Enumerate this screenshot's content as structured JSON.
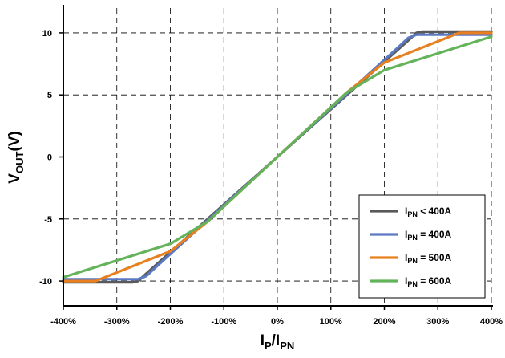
{
  "chart_data": {
    "type": "line",
    "title": "",
    "xlabel": {
      "main": "I",
      "sub1": "P",
      "sep": "/I",
      "sub2": "PN"
    },
    "ylabel": {
      "main": "V",
      "sub": "OUT",
      "unit": "(V)"
    },
    "xlim": [
      -400,
      400
    ],
    "ylim": [
      -12,
      12
    ],
    "x_ticks": [
      -400,
      -300,
      -200,
      -100,
      0,
      100,
      200,
      300,
      400
    ],
    "x_tick_labels": [
      "-400%",
      "-300%",
      "-200%",
      "-100%",
      "0%",
      "100%",
      "200%",
      "300%",
      "400%"
    ],
    "y_ticks": [
      -10,
      -5,
      0,
      5,
      10
    ],
    "y_tick_labels": [
      "-10",
      "-5",
      "0",
      "5",
      "10"
    ],
    "grid": true,
    "legend_position": "bottom-right",
    "series": [
      {
        "name": "I_PN < 400A",
        "label_main": "I",
        "label_sub": "PN",
        "label_rest": " < 400A",
        "color": "#595959",
        "x": [
          -400,
          -270,
          -260,
          -250,
          0,
          250,
          260,
          270,
          400
        ],
        "y": [
          -10.1,
          -10.1,
          -10,
          -9.6,
          0,
          9.6,
          10,
          10.1,
          10.1
        ]
      },
      {
        "name": "I_PN = 400A",
        "label_main": "I",
        "label_sub": "PN",
        "label_rest": " = 400A",
        "color": "#5b79c3",
        "x": [
          -400,
          -260,
          -245,
          -230,
          0,
          230,
          245,
          260,
          400
        ],
        "y": [
          -9.85,
          -9.85,
          -9.6,
          -9,
          0,
          9,
          9.6,
          9.85,
          9.85
        ]
      },
      {
        "name": "I_PN = 500A",
        "label_main": "I",
        "label_sub": "PN",
        "label_rest": " = 500A",
        "color": "#e8801f",
        "x": [
          -400,
          -340,
          -200,
          -130,
          0,
          130,
          200,
          340,
          400
        ],
        "y": [
          -10,
          -10,
          -7.6,
          -5.2,
          0,
          5.2,
          7.6,
          10,
          10
        ]
      },
      {
        "name": "I_PN = 600A",
        "label_main": "I",
        "label_sub": "PN",
        "label_rest": " = 600A",
        "color": "#63b35a",
        "x": [
          -400,
          -200,
          -130,
          0,
          130,
          200,
          400
        ],
        "y": [
          -9.7,
          -7,
          -5.2,
          0,
          5.2,
          7,
          9.7
        ]
      }
    ]
  }
}
